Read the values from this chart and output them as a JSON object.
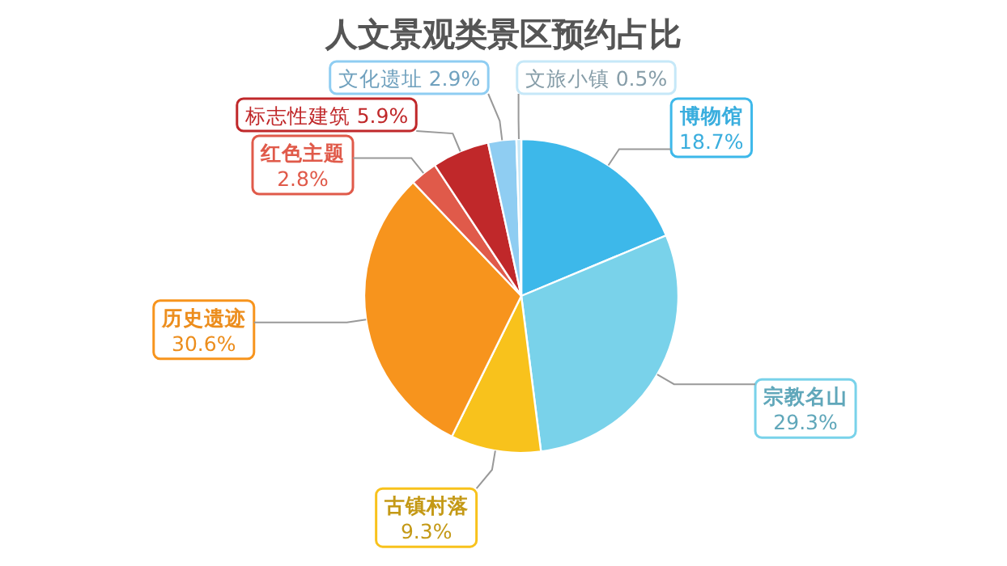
{
  "chart_data": {
    "type": "pie",
    "title": "人文景观类景区预约占比",
    "categories": [
      "博物馆",
      "宗教名山",
      "古镇村落",
      "历史遗迹",
      "红色主题",
      "标志性建筑",
      "文化遗址",
      "文旅小镇"
    ],
    "values": [
      18.7,
      29.3,
      9.3,
      30.6,
      2.8,
      5.9,
      2.9,
      0.5
    ],
    "value_labels": [
      "18.7%",
      "29.3%",
      "9.3%",
      "30.6%",
      "2.8%",
      "5.9%",
      "2.9%",
      "0.5%"
    ],
    "colors": [
      "#3db8ea",
      "#79d2ea",
      "#f8c21c",
      "#f7941d",
      "#e05a4a",
      "#c0282a",
      "#8fcdf2",
      "#c6e8f8"
    ]
  }
}
